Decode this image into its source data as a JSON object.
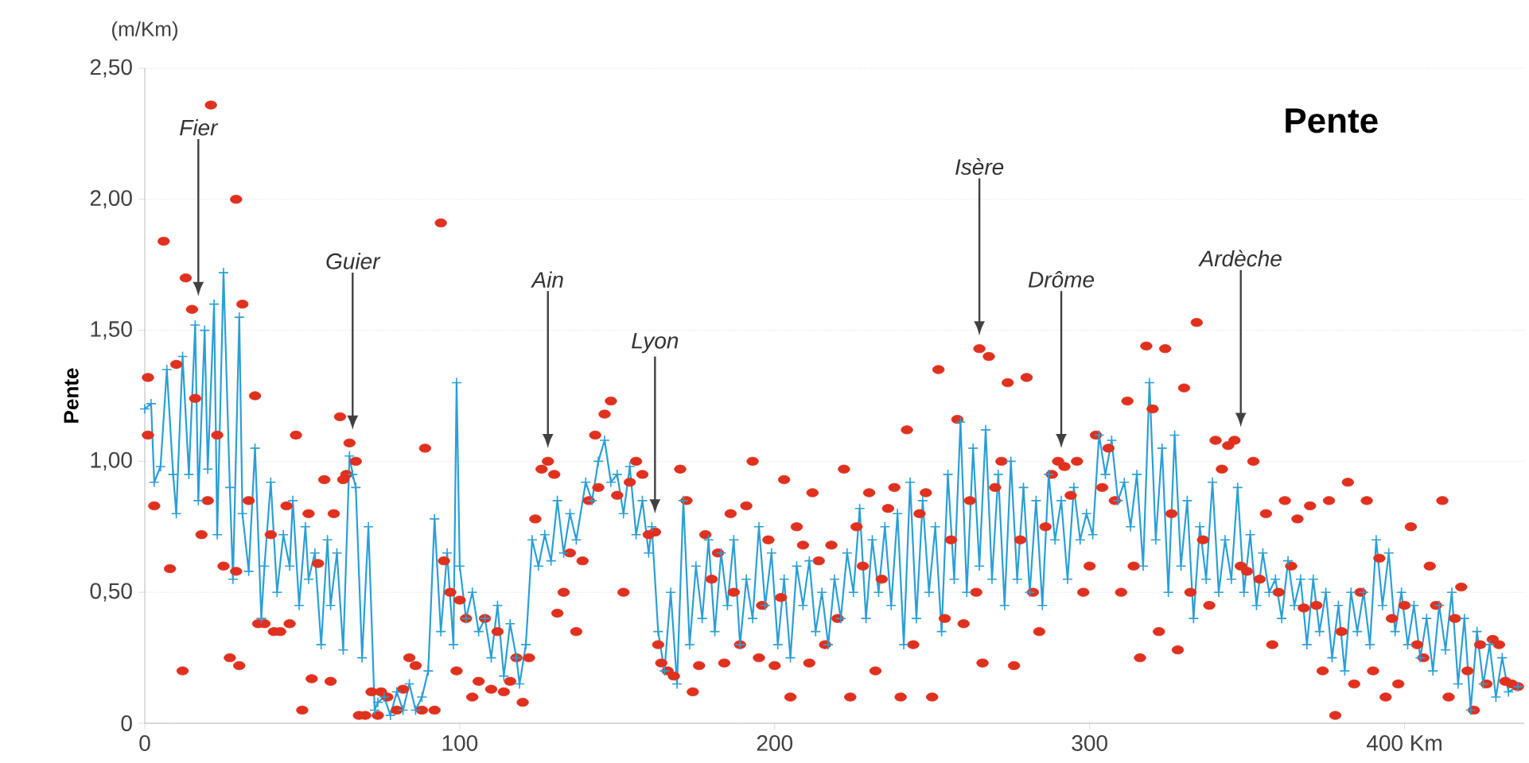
{
  "chart_data": {
    "type": "line",
    "title": "Pente",
    "ylabel": "Pente",
    "xlim": [
      0,
      438
    ],
    "ylim": [
      0,
      2.5
    ],
    "xticks": [
      0,
      100,
      200,
      300,
      {
        "value": 400,
        "label": "400 Km"
      }
    ],
    "yticks": [
      0,
      {
        "value": 0.5,
        "label": "0,50"
      },
      {
        "value": 1.0,
        "label": "1,00"
      },
      {
        "value": 1.5,
        "label": "1,50"
      },
      {
        "value": 2.0,
        "label": "2,00"
      },
      {
        "value": 2.5,
        "label": "2,50"
      }
    ],
    "grid": "y",
    "legend": false,
    "annotations": [
      "(m/Km)",
      {
        "text": "Fier",
        "x": 17
      },
      {
        "text": "Guier",
        "x": 66
      },
      {
        "text": "Ain",
        "x": 128
      },
      {
        "text": "Lyon",
        "x": 162
      },
      {
        "text": "Isère",
        "x": 265
      },
      {
        "text": "Drôme",
        "x": 291
      },
      {
        "text": "Ardèche",
        "x": 348
      }
    ],
    "series": [
      {
        "type": "scatter",
        "color": "#e0301e",
        "marker": "circle",
        "x": [
          1,
          1,
          3,
          6,
          8,
          10,
          12,
          13,
          15,
          16,
          18,
          20,
          21,
          23,
          25,
          27,
          29,
          29,
          30,
          31,
          33,
          35,
          36,
          38,
          40,
          41,
          43,
          45,
          46,
          48,
          50,
          52,
          53,
          55,
          57,
          59,
          60,
          62,
          63,
          64,
          65,
          67,
          68,
          70,
          72,
          74,
          75,
          77,
          80,
          82,
          84,
          86,
          88,
          89,
          92,
          94,
          95,
          97,
          99,
          100,
          102,
          104,
          106,
          108,
          110,
          112,
          114,
          116,
          118,
          120,
          122,
          124,
          126,
          128,
          130,
          131,
          133,
          135,
          137,
          139,
          141,
          143,
          144,
          146,
          148,
          150,
          152,
          154,
          156,
          158,
          160,
          162,
          163,
          164,
          166,
          168,
          170,
          172,
          174,
          176,
          178,
          180,
          182,
          184,
          186,
          187,
          189,
          191,
          193,
          195,
          196,
          198,
          200,
          202,
          203,
          205,
          207,
          209,
          211,
          212,
          214,
          216,
          218,
          220,
          222,
          224,
          226,
          228,
          230,
          232,
          234,
          236,
          238,
          240,
          242,
          244,
          246,
          248,
          250,
          252,
          254,
          256,
          258,
          260,
          262,
          264,
          265,
          266,
          268,
          270,
          272,
          274,
          276,
          278,
          280,
          282,
          284,
          286,
          288,
          290,
          292,
          294,
          296,
          298,
          300,
          302,
          304,
          306,
          308,
          310,
          312,
          314,
          316,
          318,
          320,
          322,
          324,
          326,
          328,
          330,
          332,
          334,
          336,
          338,
          340,
          342,
          344,
          346,
          348,
          350,
          352,
          354,
          356,
          358,
          360,
          362,
          364,
          366,
          368,
          370,
          372,
          374,
          376,
          378,
          380,
          382,
          384,
          386,
          388,
          390,
          392,
          394,
          396,
          398,
          400,
          402,
          404,
          406,
          408,
          410,
          412,
          414,
          416,
          418,
          420,
          422,
          424,
          426,
          428,
          430,
          432,
          434,
          436
        ],
        "values": [
          1.32,
          1.1,
          0.83,
          1.84,
          0.59,
          1.37,
          0.2,
          1.7,
          1.58,
          1.24,
          0.72,
          0.85,
          2.36,
          1.1,
          0.6,
          0.25,
          2.0,
          0.58,
          0.22,
          1.6,
          0.85,
          1.25,
          0.38,
          0.38,
          0.72,
          0.35,
          0.35,
          0.83,
          0.38,
          1.1,
          0.05,
          0.8,
          0.17,
          0.61,
          0.93,
          0.16,
          0.8,
          1.17,
          0.93,
          0.95,
          1.07,
          1.0,
          0.03,
          0.03,
          0.12,
          0.03,
          0.12,
          0.1,
          0.05,
          0.13,
          0.25,
          0.22,
          0.05,
          1.05,
          0.05,
          1.91,
          0.62,
          0.5,
          0.2,
          0.47,
          0.4,
          0.1,
          0.16,
          0.4,
          0.13,
          0.35,
          0.12,
          0.16,
          0.25,
          0.08,
          0.25,
          0.78,
          0.97,
          1.0,
          0.95,
          0.42,
          0.5,
          0.65,
          0.35,
          0.62,
          0.85,
          1.1,
          0.9,
          1.18,
          1.23,
          0.87,
          0.5,
          0.92,
          1.0,
          0.95,
          0.72,
          0.73,
          0.3,
          0.23,
          0.2,
          0.18,
          0.97,
          0.85,
          0.12,
          0.22,
          0.72,
          0.55,
          0.65,
          0.23,
          0.8,
          0.5,
          0.3,
          0.83,
          1.0,
          0.25,
          0.45,
          0.7,
          0.22,
          0.48,
          0.93,
          0.1,
          0.75,
          0.68,
          0.23,
          0.88,
          0.62,
          0.3,
          0.68,
          0.4,
          0.97,
          0.1,
          0.75,
          0.6,
          0.88,
          0.2,
          0.55,
          0.82,
          0.9,
          0.1,
          1.12,
          0.3,
          0.8,
          0.88,
          0.1,
          1.35,
          0.4,
          0.7,
          1.16,
          0.38,
          0.85,
          0.5,
          1.43,
          0.23,
          1.4,
          0.9,
          1.0,
          1.3,
          0.22,
          0.7,
          1.32,
          0.5,
          0.35,
          0.75,
          0.95,
          1.0,
          0.98,
          0.87,
          1.0,
          0.5,
          0.6,
          1.1,
          0.9,
          1.05,
          0.85,
          0.5,
          1.23,
          0.6,
          0.25,
          1.44,
          1.2,
          0.35,
          1.43,
          0.8,
          0.28,
          1.28,
          0.5,
          1.53,
          0.7,
          0.45,
          1.08,
          0.97,
          1.06,
          1.08,
          0.6,
          0.58,
          1.0,
          0.55,
          0.8,
          0.3,
          0.5,
          0.85,
          0.6,
          0.78,
          0.44,
          0.83,
          0.45,
          0.2,
          0.85,
          0.03,
          0.35,
          0.92,
          0.15,
          0.5,
          0.85,
          0.2,
          0.63,
          0.1,
          0.4,
          0.15,
          0.45,
          0.75,
          0.3,
          0.25,
          0.6,
          0.45,
          0.85,
          0.1,
          0.4,
          0.52,
          0.2,
          0.05,
          0.3,
          0.15,
          0.32,
          0.3,
          0.16,
          0.15,
          0.14
        ]
      },
      {
        "type": "line",
        "color": "#2a9fd6",
        "marker": "cross",
        "line_style": "solid",
        "x": [
          0,
          2,
          3,
          5,
          7,
          9,
          10,
          12,
          14,
          16,
          17,
          19,
          20,
          22,
          23,
          25,
          27,
          28,
          30,
          31,
          33,
          35,
          37,
          38,
          40,
          42,
          44,
          46,
          47,
          49,
          51,
          52,
          54,
          56,
          58,
          59,
          61,
          63,
          65,
          66,
          67,
          69,
          71,
          73,
          74,
          76,
          78,
          80,
          82,
          84,
          86,
          88,
          90,
          92,
          94,
          96,
          98,
          99,
          100,
          102,
          104,
          106,
          108,
          110,
          112,
          114,
          116,
          118,
          119,
          121,
          123,
          125,
          127,
          129,
          131,
          133,
          135,
          137,
          140,
          142,
          144,
          146,
          148,
          150,
          152,
          154,
          156,
          158,
          160,
          161,
          163,
          165,
          167,
          169,
          171,
          173,
          175,
          177,
          179,
          181,
          183,
          185,
          187,
          189,
          191,
          193,
          195,
          197,
          199,
          201,
          203,
          205,
          207,
          209,
          211,
          213,
          215,
          217,
          219,
          221,
          223,
          225,
          227,
          229,
          231,
          233,
          235,
          237,
          239,
          241,
          243,
          245,
          247,
          249,
          251,
          253,
          255,
          257,
          259,
          261,
          263,
          265,
          267,
          269,
          271,
          273,
          275,
          277,
          279,
          281,
          283,
          285,
          287,
          289,
          291,
          293,
          295,
          297,
          299,
          301,
          303,
          305,
          307,
          309,
          311,
          313,
          315,
          317,
          319,
          321,
          323,
          325,
          327,
          329,
          331,
          333,
          335,
          337,
          339,
          341,
          343,
          345,
          347,
          349,
          351,
          353,
          355,
          357,
          359,
          361,
          363,
          365,
          367,
          369,
          371,
          373,
          375,
          377,
          379,
          381,
          383,
          385,
          387,
          389,
          391,
          393,
          395,
          397,
          399,
          401,
          403,
          405,
          407,
          409,
          411,
          413,
          415,
          417,
          419,
          421,
          423,
          425,
          427,
          429,
          431,
          433,
          436
        ],
        "values": [
          1.2,
          1.22,
          0.92,
          0.98,
          1.35,
          0.95,
          0.8,
          1.4,
          0.95,
          1.52,
          0.85,
          1.5,
          0.97,
          1.6,
          0.72,
          1.72,
          0.9,
          0.55,
          1.55,
          0.8,
          0.58,
          1.05,
          0.4,
          0.6,
          0.92,
          0.5,
          0.72,
          0.6,
          0.85,
          0.45,
          0.75,
          0.55,
          0.65,
          0.3,
          0.7,
          0.45,
          0.65,
          0.28,
          1.02,
          0.95,
          0.9,
          0.25,
          0.75,
          0.05,
          0.08,
          0.1,
          0.03,
          0.12,
          0.05,
          0.15,
          0.05,
          0.1,
          0.2,
          0.78,
          0.35,
          0.65,
          0.3,
          1.3,
          0.6,
          0.4,
          0.5,
          0.35,
          0.4,
          0.25,
          0.45,
          0.18,
          0.38,
          0.25,
          0.15,
          0.3,
          0.7,
          0.6,
          0.72,
          0.62,
          0.85,
          0.65,
          0.8,
          0.7,
          0.92,
          0.85,
          1.0,
          1.08,
          0.92,
          0.95,
          0.8,
          0.98,
          0.72,
          0.85,
          0.65,
          0.75,
          0.35,
          0.2,
          0.5,
          0.15,
          0.85,
          0.3,
          0.6,
          0.4,
          0.7,
          0.35,
          0.65,
          0.45,
          0.7,
          0.3,
          0.55,
          0.4,
          0.75,
          0.45,
          0.65,
          0.3,
          0.55,
          0.25,
          0.6,
          0.45,
          0.62,
          0.35,
          0.5,
          0.3,
          0.55,
          0.4,
          0.65,
          0.5,
          0.82,
          0.4,
          0.7,
          0.5,
          0.75,
          0.45,
          0.8,
          0.3,
          0.92,
          0.4,
          0.85,
          0.5,
          0.75,
          0.35,
          0.95,
          0.55,
          1.15,
          0.5,
          1.05,
          0.6,
          1.12,
          0.55,
          0.95,
          0.45,
          1.0,
          0.55,
          0.9,
          0.5,
          0.85,
          0.45,
          0.95,
          0.7,
          0.85,
          0.55,
          0.9,
          0.7,
          0.8,
          0.72,
          1.1,
          0.95,
          1.08,
          0.85,
          0.92,
          0.75,
          0.95,
          0.6,
          1.3,
          0.7,
          1.05,
          0.5,
          1.1,
          0.6,
          0.85,
          0.4,
          0.75,
          0.55,
          0.92,
          0.5,
          0.7,
          0.55,
          0.9,
          0.5,
          0.72,
          0.45,
          0.65,
          0.5,
          0.55,
          0.4,
          0.62,
          0.45,
          0.55,
          0.3,
          0.55,
          0.35,
          0.5,
          0.25,
          0.45,
          0.2,
          0.5,
          0.35,
          0.5,
          0.3,
          0.7,
          0.45,
          0.65,
          0.35,
          0.5,
          0.3,
          0.45,
          0.25,
          0.4,
          0.2,
          0.45,
          0.28,
          0.5,
          0.15,
          0.4,
          0.05,
          0.35,
          0.15,
          0.3,
          0.1,
          0.25,
          0.12,
          0.14
        ]
      }
    ]
  }
}
